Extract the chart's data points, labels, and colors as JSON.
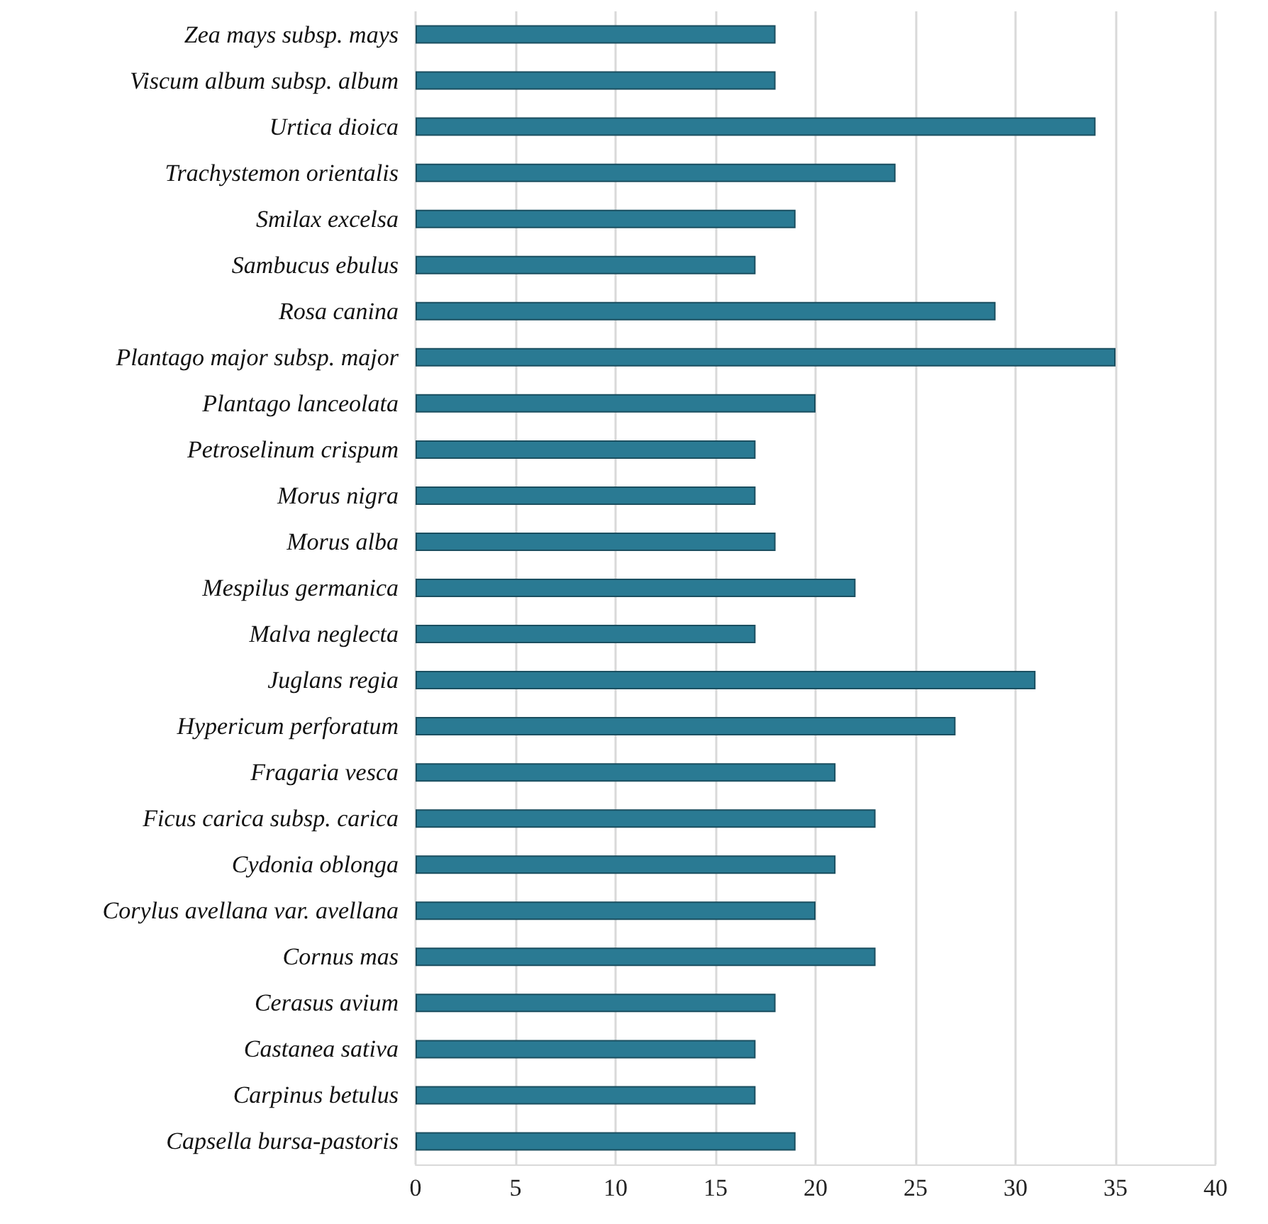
{
  "chart_data": {
    "type": "bar",
    "orientation": "horizontal",
    "categories": [
      "Zea mays subsp. mays",
      "Viscum album subsp. album",
      "Urtica dioica",
      "Trachystemon orientalis",
      "Smilax excelsa",
      "Sambucus ebulus",
      "Rosa canina",
      "Plantago major subsp. major",
      "Plantago lanceolata",
      "Petroselinum crispum",
      "Morus nigra",
      "Morus alba",
      "Mespilus germanica",
      "Malva neglecta",
      "Juglans regia",
      "Hypericum perforatum",
      "Fragaria vesca",
      "Ficus carica subsp. carica",
      "Cydonia oblonga",
      "Corylus avellana var. avellana",
      "Cornus mas",
      "Cerasus avium",
      "Castanea sativa",
      "Carpinus betulus",
      "Capsella bursa-pastoris"
    ],
    "values": [
      18,
      18,
      34,
      24,
      19,
      17,
      29,
      35,
      20,
      17,
      17,
      18,
      22,
      17,
      31,
      27,
      21,
      23,
      21,
      20,
      23,
      18,
      17,
      17,
      19
    ],
    "color": "#2a7a93",
    "xlim": [
      0,
      40
    ],
    "xticks": [
      0,
      5,
      10,
      15,
      20,
      25,
      30,
      35,
      40
    ],
    "grid": "x"
  }
}
